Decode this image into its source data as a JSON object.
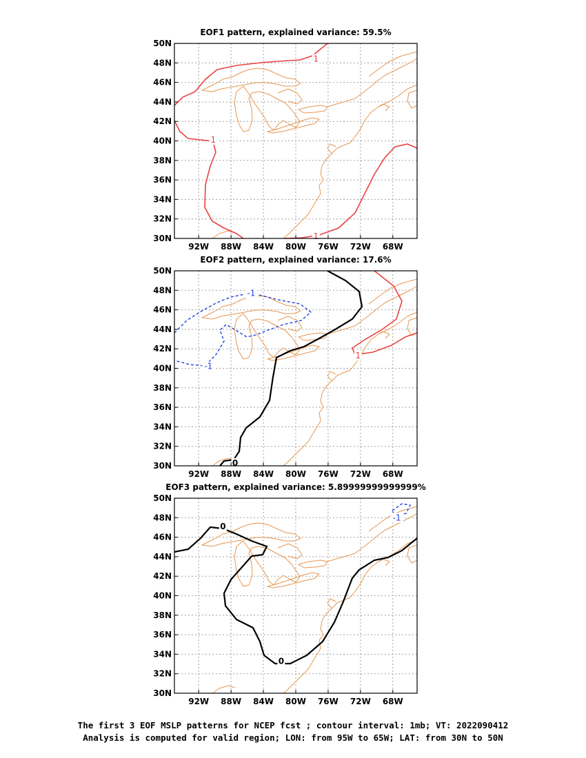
{
  "panels": [
    {
      "title": "EOF1 pattern, explained variance: 59.5%",
      "contour_labels": [
        {
          "text": "1",
          "lon": -77.5,
          "lat": 48.4,
          "color": "red"
        },
        {
          "text": "1",
          "lon": -90.2,
          "lat": 40.1,
          "color": "red"
        },
        {
          "text": "1",
          "lon": -77.5,
          "lat": 30.2,
          "color": "red"
        }
      ]
    },
    {
      "title": "EOF2 pattern, explained variance: 17.6%",
      "contour_labels": [
        {
          "text": "-1",
          "lon": -85.5,
          "lat": 47.7,
          "color": "blue"
        },
        {
          "text": "-1",
          "lon": -90.8,
          "lat": 40.2,
          "color": "blue"
        },
        {
          "text": "0",
          "lon": -87.5,
          "lat": 30.3,
          "color": "black"
        },
        {
          "text": "1",
          "lon": -72.3,
          "lat": 41.3,
          "color": "red"
        }
      ]
    },
    {
      "title": "EOF3 pattern, explained variance: 5.89999999999999%",
      "contour_labels": [
        {
          "text": "0",
          "lon": -89.0,
          "lat": 47.1,
          "color": "black"
        },
        {
          "text": "0",
          "lon": -81.8,
          "lat": 33.3,
          "color": "black"
        },
        {
          "text": "-1",
          "lon": -67.5,
          "lat": 48.0,
          "color": "blue"
        }
      ]
    }
  ],
  "axes": {
    "lon_ticks": [
      "92W",
      "88W",
      "84W",
      "80W",
      "76W",
      "72W",
      "68W"
    ],
    "lon_tick_values": [
      -92,
      -88,
      -84,
      -80,
      -76,
      -72,
      -68
    ],
    "lat_ticks": [
      "30N",
      "32N",
      "34N",
      "36N",
      "38N",
      "40N",
      "42N",
      "44N",
      "46N",
      "48N",
      "50N"
    ],
    "lat_tick_values": [
      30,
      32,
      34,
      36,
      38,
      40,
      42,
      44,
      46,
      48,
      50
    ],
    "lon_range": [
      -95,
      -65
    ],
    "lat_range": [
      30,
      50
    ],
    "grid": true
  },
  "colors": {
    "coast": "#e69650",
    "positive": "#e84040",
    "negative": "#2040e0",
    "zero": "#000000",
    "grid": "#a0a0a0"
  },
  "caption": {
    "line1": "The first 3 EOF MSLP patterns for NCEP fcst ; contour interval: 1mb; VT: 2022090412",
    "line2": "Analysis is computed for valid region; LON: from 95W to 65W; LAT: from 30N to 50N"
  }
}
